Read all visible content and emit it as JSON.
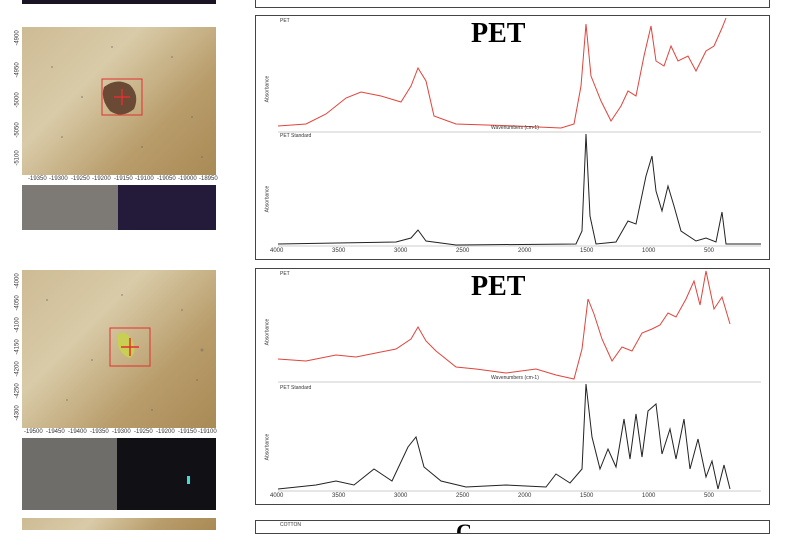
{
  "panels": [
    {
      "title": "PET",
      "sample_label": "PET",
      "standard_label": "PET Standard",
      "y_axis_label": "Absorbance",
      "x_axis_label": "Wavenumbers (cm-1)",
      "micrograph_x_ticks": [
        "-19350",
        "-19300",
        "-19250",
        "-19200",
        "-19150",
        "-19100",
        "-19050",
        "-19000",
        "-18950"
      ],
      "micrograph_y_ticks": [
        "-4900",
        "-4950",
        "-5000",
        "-5050",
        "-5100"
      ],
      "spectrum_x_ticks": [
        "4000",
        "3500",
        "3000",
        "2500",
        "2000",
        "1500",
        "1000",
        "500"
      ]
    },
    {
      "title": "PET",
      "sample_label": "PET",
      "standard_label": "PET Standard",
      "y_axis_label": "Absorbance",
      "x_axis_label": "Wavenumbers (cm-1)",
      "micrograph_x_ticks": [
        "-19500",
        "-19450",
        "-19400",
        "-19350",
        "-19300",
        "-19250",
        "-19200",
        "-19150",
        "-19100"
      ],
      "micrograph_y_ticks": [
        "-4000",
        "-4050",
        "-4100",
        "-4150",
        "-4200",
        "-4250",
        "-4300"
      ],
      "spectrum_x_ticks": [
        "4000",
        "3500",
        "3000",
        "2500",
        "2000",
        "1500",
        "1000",
        "500"
      ]
    }
  ],
  "bottom_partial": {
    "title": "C",
    "sample_label": "COTTON"
  },
  "colors": {
    "sample_line": "#e0443c",
    "standard_line": "#222222",
    "marker": "#e03030"
  }
}
